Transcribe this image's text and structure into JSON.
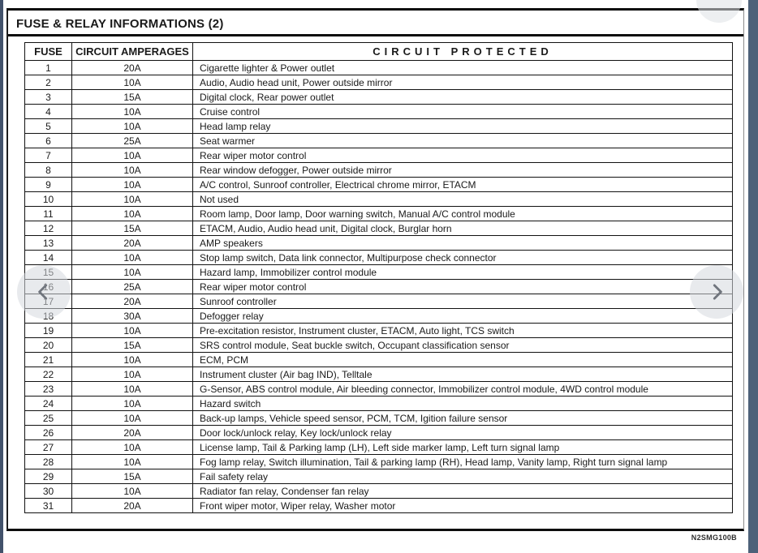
{
  "page": {
    "title": "FUSE & RELAY INFORMATIONS (2)",
    "doc_code": "N2SMG100B"
  },
  "table": {
    "headers": [
      "FUSE",
      "CIRCUIT AMPERAGES",
      "CIRCUIT PROTECTED"
    ],
    "rows": [
      {
        "fuse": "1",
        "amperage": "20A",
        "protected": "Cigarette lighter & Power outlet"
      },
      {
        "fuse": "2",
        "amperage": "10A",
        "protected": "Audio, Audio head unit, Power outside mirror"
      },
      {
        "fuse": "3",
        "amperage": "15A",
        "protected": "Digital clock, Rear power outlet"
      },
      {
        "fuse": "4",
        "amperage": "10A",
        "protected": "Cruise control"
      },
      {
        "fuse": "5",
        "amperage": "10A",
        "protected": "Head lamp relay"
      },
      {
        "fuse": "6",
        "amperage": "25A",
        "protected": "Seat warmer"
      },
      {
        "fuse": "7",
        "amperage": "10A",
        "protected": "Rear wiper motor control"
      },
      {
        "fuse": "8",
        "amperage": "10A",
        "protected": "Rear window defogger, Power outside mirror"
      },
      {
        "fuse": "9",
        "amperage": "10A",
        "protected": "A/C control, Sunroof controller, Electrical chrome mirror, ETACM"
      },
      {
        "fuse": "10",
        "amperage": "10A",
        "protected": "Not used"
      },
      {
        "fuse": "11",
        "amperage": "10A",
        "protected": "Room lamp, Door lamp, Door warning switch, Manual A/C control module"
      },
      {
        "fuse": "12",
        "amperage": "15A",
        "protected": "ETACM, Audio, Audio head unit, Digital clock, Burglar horn"
      },
      {
        "fuse": "13",
        "amperage": "20A",
        "protected": "AMP speakers"
      },
      {
        "fuse": "14",
        "amperage": "10A",
        "protected": "Stop lamp switch, Data link connector, Multipurpose check connector"
      },
      {
        "fuse": "15",
        "amperage": "10A",
        "protected": "Hazard lamp, Immobilizer control module"
      },
      {
        "fuse": "16",
        "amperage": "25A",
        "protected": "Rear wiper motor control"
      },
      {
        "fuse": "17",
        "amperage": "20A",
        "protected": "Sunroof controller"
      },
      {
        "fuse": "18",
        "amperage": "30A",
        "protected": "Defogger relay"
      },
      {
        "fuse": "19",
        "amperage": "10A",
        "protected": "Pre-excitation resistor, Instrument cluster, ETACM, Auto light, TCS switch"
      },
      {
        "fuse": "20",
        "amperage": "15A",
        "protected": "SRS control module, Seat buckle switch, Occupant classification sensor"
      },
      {
        "fuse": "21",
        "amperage": "10A",
        "protected": "ECM, PCM"
      },
      {
        "fuse": "22",
        "amperage": "10A",
        "protected": "Instrument cluster (Air bag IND), Telltale"
      },
      {
        "fuse": "23",
        "amperage": "10A",
        "protected": "G-Sensor, ABS control module, Air bleeding connector, Immobilizer control module, 4WD control module"
      },
      {
        "fuse": "24",
        "amperage": "10A",
        "protected": "Hazard switch"
      },
      {
        "fuse": "25",
        "amperage": "10A",
        "protected": "Back-up lamps, Vehicle speed sensor, PCM, TCM, Igition failure sensor"
      },
      {
        "fuse": "26",
        "amperage": "20A",
        "protected": "Door lock/unlock relay, Key lock/unlock relay"
      },
      {
        "fuse": "27",
        "amperage": "10A",
        "protected": "License lamp, Tail & Parking lamp (LH), Left side marker lamp, Left turn signal lamp"
      },
      {
        "fuse": "28",
        "amperage": "10A",
        "protected": "Fog lamp relay, Switch illumination, Tail & parking lamp (RH), Head lamp, Vanity lamp, Right turn signal lamp"
      },
      {
        "fuse": "29",
        "amperage": "15A",
        "protected": "Fail safety relay"
      },
      {
        "fuse": "30",
        "amperage": "10A",
        "protected": "Radiator fan relay, Condenser fan relay"
      },
      {
        "fuse": "31",
        "amperage": "20A",
        "protected": "Front wiper motor, Wiper relay, Washer motor"
      }
    ]
  },
  "colors": {
    "frame_bar_left": "#42526b",
    "frame_bar_right": "#4d6179",
    "table_border": "#111111",
    "nav_chevron": "#70757d"
  }
}
